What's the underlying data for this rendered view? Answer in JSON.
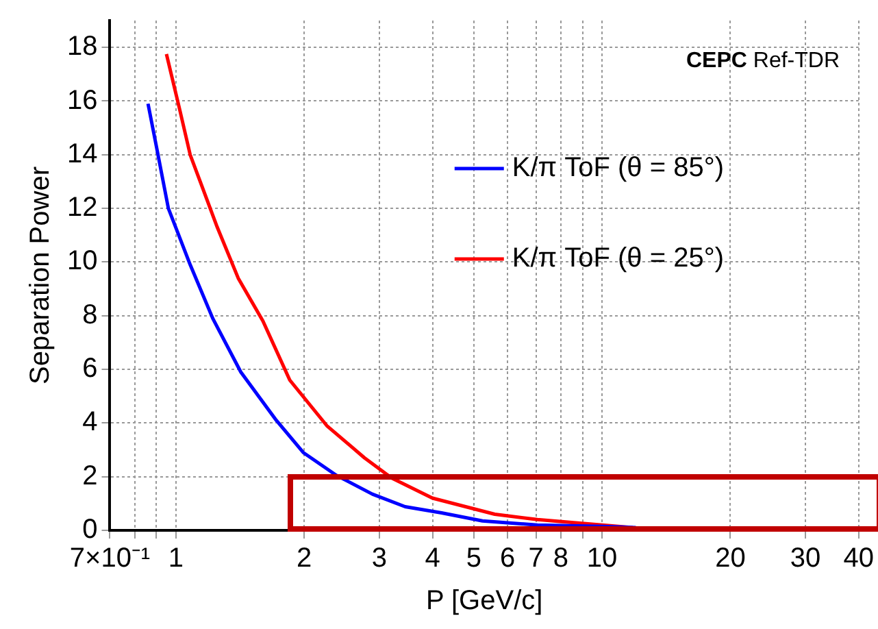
{
  "chart_data": {
    "type": "line",
    "xlabel": "P [GeV/c]",
    "ylabel": "Separation Power",
    "log": "x",
    "grid": true,
    "legend": "top right",
    "line_style": "solid",
    "marker": "none",
    "annotations": [
      "CEPC Ref-TDR"
    ],
    "xlim": [
      0.7,
      40
    ],
    "ylim": [
      0,
      19
    ],
    "xticks": [
      {
        "value": 0.7,
        "label": "7×10⁻¹"
      },
      {
        "value": 0.8,
        "label": null
      },
      {
        "value": 0.9,
        "label": null
      },
      1,
      2,
      3,
      4,
      5,
      6,
      7,
      8,
      {
        "value": 9,
        "label": null
      },
      10,
      20,
      30,
      40
    ],
    "yticks": [
      0,
      2,
      4,
      6,
      8,
      10,
      12,
      14,
      16,
      18
    ],
    "series": [
      {
        "name": "K/π ToF (θ = 85°)",
        "color": "#0000ff",
        "x": [
          0.86,
          0.9,
          0.96,
          1.08,
          1.22,
          1.42,
          1.72,
          1.99,
          2.38,
          2.89,
          3.45,
          4.2,
          5.24,
          7.05,
          10,
          12
        ],
        "values": [
          15.9,
          14.3,
          12.0,
          9.9,
          7.9,
          5.9,
          4.1,
          2.9,
          2.05,
          1.35,
          0.88,
          0.65,
          0.35,
          0.2,
          0.15,
          0.1
        ]
      },
      {
        "name": "K/π ToF (θ = 25°)",
        "color": "#ff0000",
        "x": [
          0.95,
          1.02,
          1.08,
          1.14,
          1.25,
          1.4,
          1.6,
          1.85,
          2.26,
          2.77,
          3.21,
          4.0,
          5.6,
          7.05,
          10,
          11.8
        ],
        "values": [
          17.75,
          15.7,
          14.0,
          13.0,
          11.3,
          9.4,
          7.8,
          5.6,
          3.9,
          2.7,
          1.95,
          1.2,
          0.6,
          0.4,
          0.2,
          0.1
        ]
      }
    ]
  }
}
